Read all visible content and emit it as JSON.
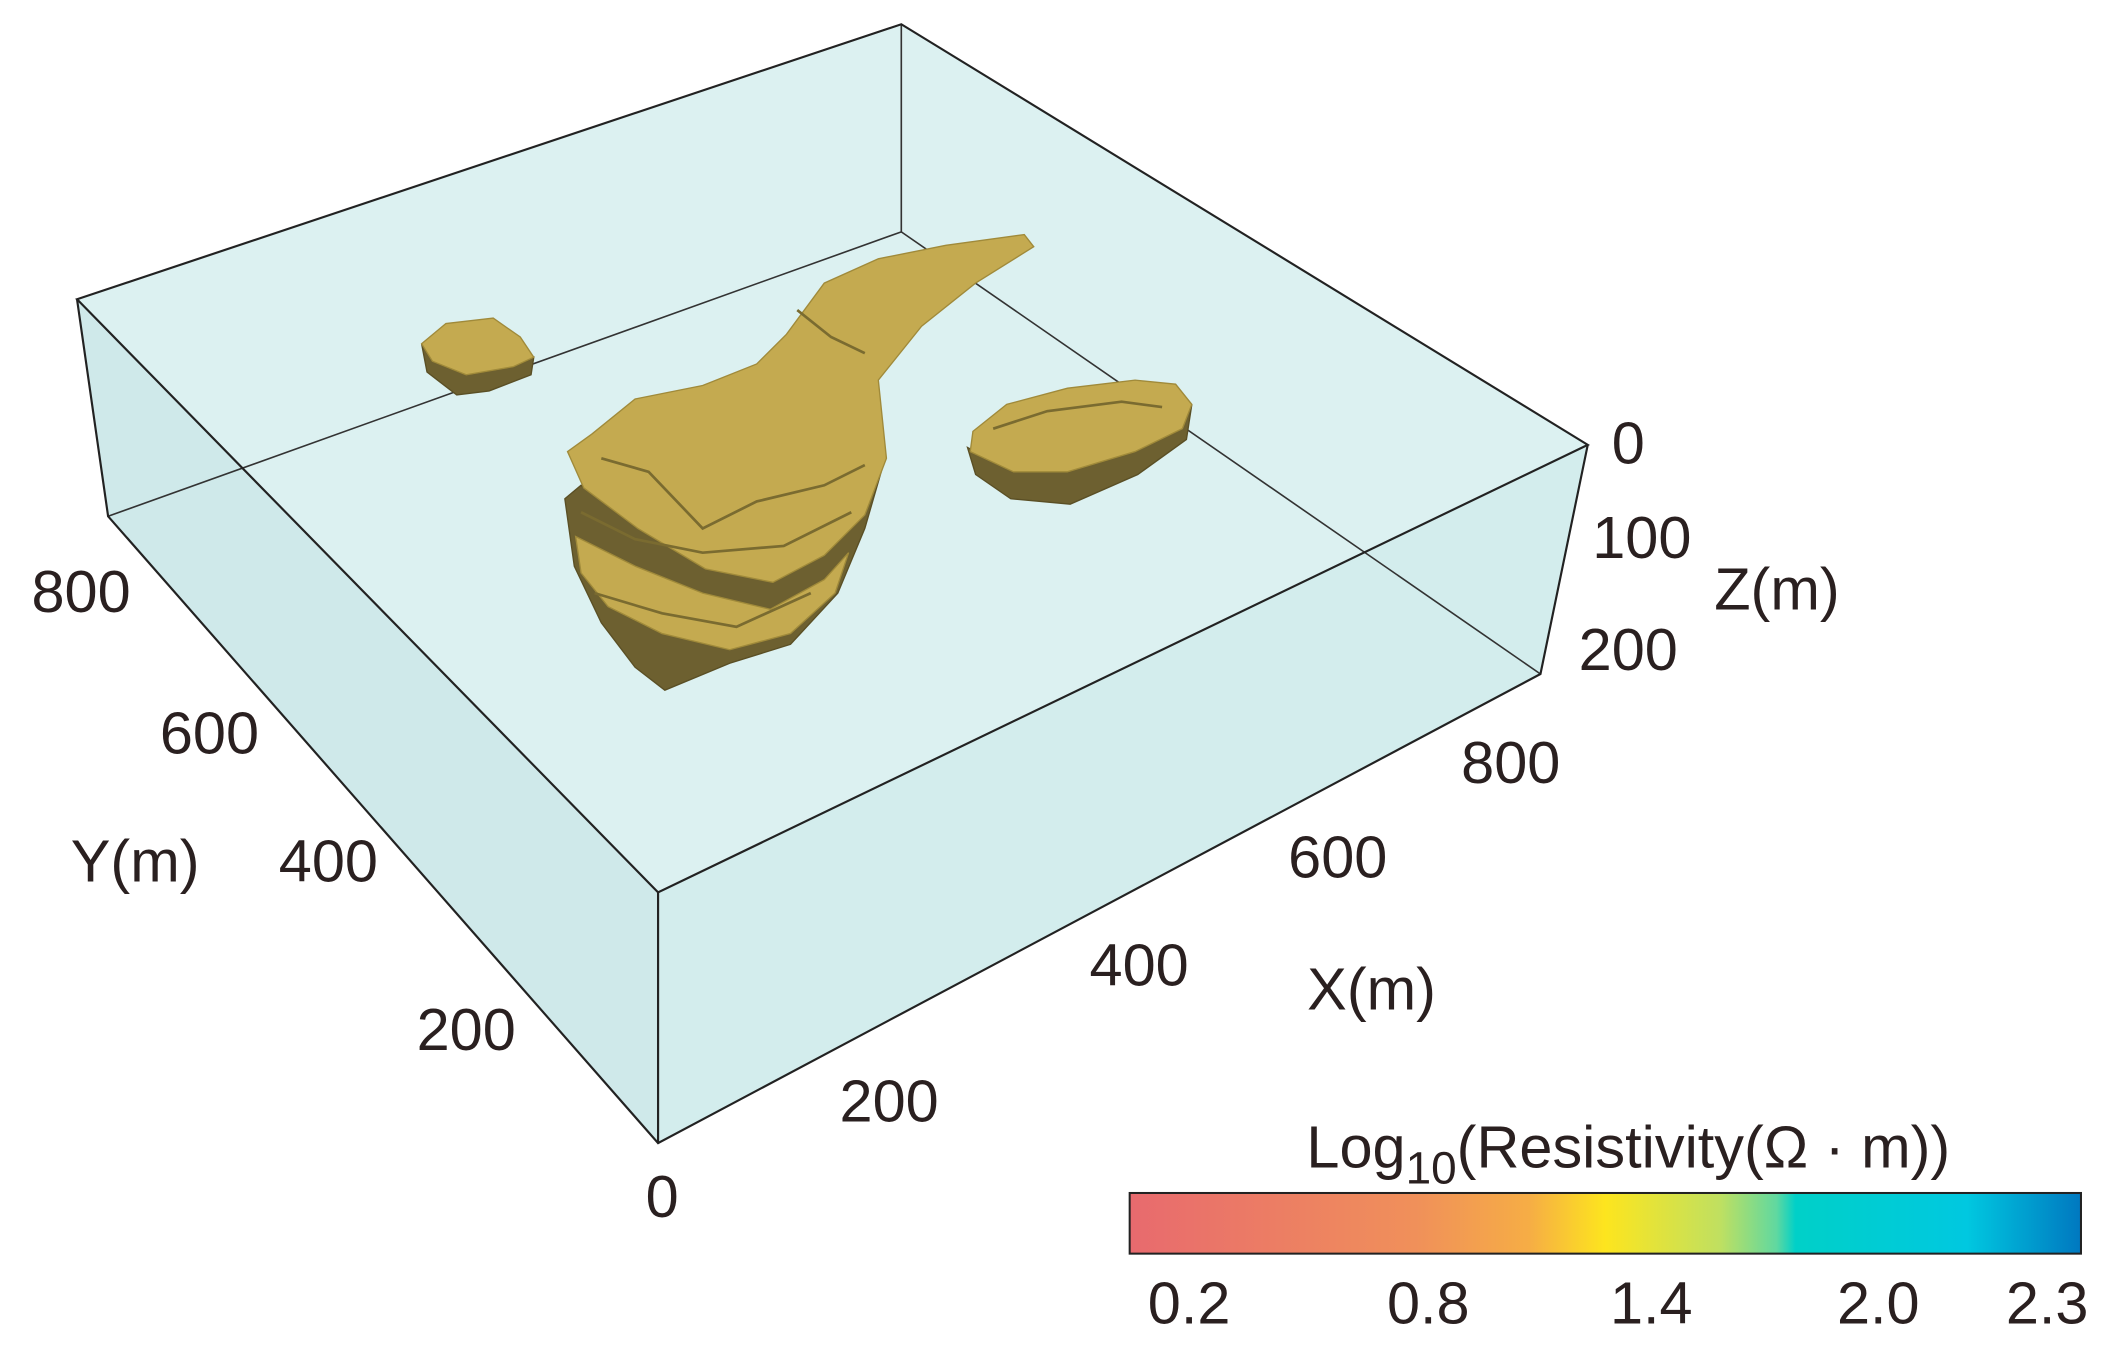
{
  "axes": {
    "x": {
      "label": "X(m)",
      "ticks": [
        "0",
        "200",
        "400",
        "600",
        "800"
      ]
    },
    "y": {
      "label": "Y(m)",
      "ticks": [
        "200",
        "400",
        "600",
        "800"
      ]
    },
    "z": {
      "label": "Z(m)",
      "ticks": [
        "0",
        "100",
        "200"
      ]
    }
  },
  "colorbar": {
    "title": {
      "base": "Log",
      "subscript": "10",
      "rest": "(Resistivity(Ω · m))"
    },
    "ticks": [
      "0.2",
      "0.8",
      "1.4",
      "2.0",
      "2.3"
    ]
  }
}
